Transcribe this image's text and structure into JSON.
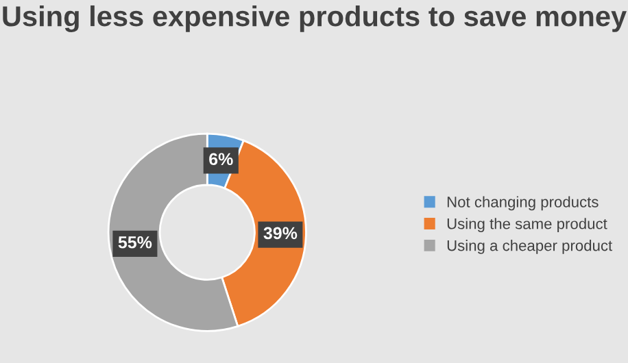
{
  "chart_data": {
    "type": "donut",
    "title": "Using less expensive products to save money",
    "categories": [
      "Not changing products",
      "Using the same product",
      "Using a cheaper product"
    ],
    "values": [
      6,
      39,
      55
    ],
    "colors": [
      "#5b9bd5",
      "#ed7d31",
      "#a5a5a5"
    ],
    "value_labels": [
      "6%",
      "39%",
      "55%"
    ],
    "legend": "right"
  }
}
